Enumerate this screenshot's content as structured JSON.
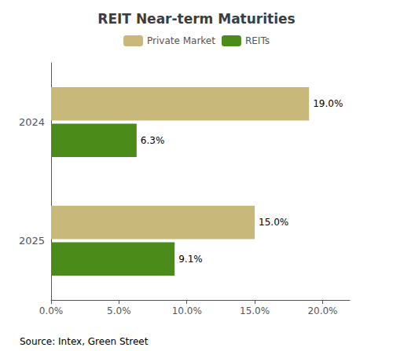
{
  "chart_data": {
    "type": "bar",
    "orientation": "horizontal",
    "title": "REIT Near-term Maturities",
    "categories": [
      "2024",
      "2025"
    ],
    "series": [
      {
        "name": "Private Market",
        "color": "#C8B97A",
        "values": [
          19.0,
          15.0
        ],
        "value_labels": [
          "19.0%",
          "15.0%"
        ]
      },
      {
        "name": "REITs",
        "color": "#4A8B1A",
        "values": [
          6.3,
          9.1
        ],
        "value_labels": [
          "6.3%",
          "9.1%"
        ]
      }
    ],
    "xlim": [
      0,
      22
    ],
    "xticks": [
      {
        "value": 0,
        "label": "0.0%"
      },
      {
        "value": 5,
        "label": "5.0%"
      },
      {
        "value": 10,
        "label": "10.0%"
      },
      {
        "value": 15,
        "label": "15.0%"
      },
      {
        "value": 20,
        "label": "20.0%"
      }
    ],
    "grid": false,
    "legend": "top",
    "data_labels": true,
    "annotations": [
      "Source: Intex, Green Street"
    ]
  }
}
